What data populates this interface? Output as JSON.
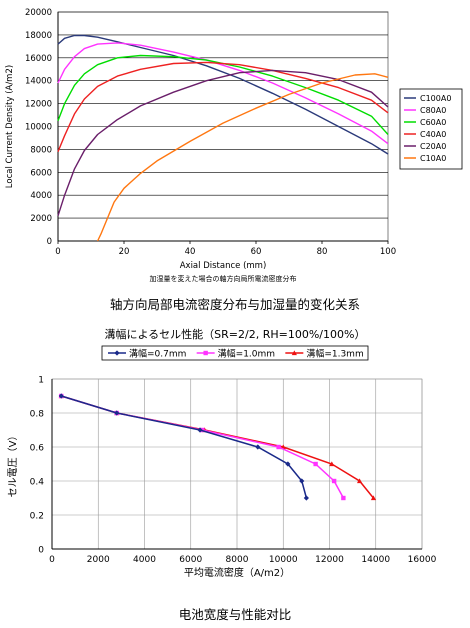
{
  "chart_data": [
    {
      "type": "line",
      "title": "",
      "xlabel": "Axial Distance (mm)",
      "ylabel": "Local Current Density (A/m2)",
      "subtitle_jp": "加湿量を変えた場合の軸方向局所電流密度分布",
      "xlim": [
        0,
        100
      ],
      "ylim": [
        0,
        20000
      ],
      "xticks": [
        0,
        20,
        40,
        60,
        80,
        100
      ],
      "yticks": [
        0,
        2000,
        4000,
        6000,
        8000,
        10000,
        12000,
        14000,
        16000,
        18000,
        20000
      ],
      "grid": true,
      "legend_position": "right",
      "series": [
        {
          "name": "C100A0",
          "color": "#2b3a7a",
          "x": [
            0,
            2,
            5,
            8,
            12,
            18,
            25,
            35,
            45,
            55,
            65,
            75,
            85,
            95,
            100
          ],
          "y": [
            17200,
            17700,
            17950,
            17950,
            17800,
            17400,
            16900,
            16200,
            15300,
            14200,
            12900,
            11500,
            10000,
            8500,
            7600
          ]
        },
        {
          "name": "C80A0",
          "color": "#ff33ff",
          "x": [
            0,
            2,
            5,
            8,
            12,
            18,
            25,
            35,
            45,
            55,
            65,
            75,
            85,
            95,
            100
          ],
          "y": [
            13800,
            15000,
            16100,
            16800,
            17200,
            17300,
            17100,
            16500,
            15800,
            14900,
            13800,
            12500,
            11100,
            9600,
            8500
          ]
        },
        {
          "name": "C60A0",
          "color": "#00dd00",
          "x": [
            0,
            2,
            5,
            8,
            12,
            18,
            25,
            35,
            45,
            55,
            65,
            75,
            85,
            95,
            100
          ],
          "y": [
            10500,
            12000,
            13600,
            14600,
            15400,
            16000,
            16200,
            16100,
            15800,
            15200,
            14400,
            13400,
            12300,
            10900,
            9300
          ]
        },
        {
          "name": "C40A0",
          "color": "#ee2222",
          "x": [
            0,
            2,
            5,
            8,
            12,
            18,
            25,
            35,
            45,
            55,
            65,
            75,
            85,
            95,
            100
          ],
          "y": [
            7800,
            9200,
            11100,
            12400,
            13500,
            14400,
            15000,
            15500,
            15600,
            15400,
            14900,
            14200,
            13400,
            12300,
            11200
          ]
        },
        {
          "name": "C20A0",
          "color": "#6a1f6a",
          "x": [
            0,
            2,
            5,
            8,
            12,
            18,
            25,
            35,
            45,
            55,
            65,
            75,
            85,
            95,
            100
          ],
          "y": [
            2200,
            4000,
            6300,
            7900,
            9300,
            10600,
            11800,
            13000,
            14000,
            14700,
            14900,
            14700,
            14100,
            13000,
            11700
          ]
        },
        {
          "name": "C10A0",
          "color": "#ff7711",
          "x": [
            12,
            13,
            15,
            17,
            20,
            25,
            30,
            40,
            50,
            60,
            70,
            80,
            90,
            96,
            100
          ],
          "y": [
            0,
            600,
            2000,
            3400,
            4600,
            5900,
            7000,
            8700,
            10300,
            11600,
            12800,
            13800,
            14500,
            14600,
            14300
          ]
        }
      ]
    },
    {
      "type": "line",
      "title": "溝幅によるセル性能（SR=2/2, RH=100%/100%）",
      "xlabel": "平均電流密度（A/m2）",
      "ylabel": "セル電圧（V）",
      "xlim": [
        0,
        16000
      ],
      "ylim": [
        0,
        1
      ],
      "xticks": [
        0,
        2000,
        4000,
        6000,
        8000,
        10000,
        12000,
        14000,
        16000
      ],
      "yticks": [
        0,
        0.2,
        0.4,
        0.6,
        0.8,
        1
      ],
      "grid": true,
      "legend_position": "top",
      "series": [
        {
          "name": "溝幅=0.7mm",
          "color": "#1a2a8a",
          "marker": "diamond",
          "x": [
            400,
            2800,
            6400,
            8900,
            10200,
            10800,
            11000
          ],
          "y": [
            0.9,
            0.8,
            0.7,
            0.6,
            0.5,
            0.4,
            0.3
          ]
        },
        {
          "name": "溝幅=1.0mm",
          "color": "#ff33ff",
          "marker": "square",
          "x": [
            400,
            2800,
            6500,
            9800,
            11400,
            12200,
            12600
          ],
          "y": [
            0.9,
            0.8,
            0.7,
            0.6,
            0.5,
            0.4,
            0.3
          ]
        },
        {
          "name": "溝幅=1.3mm",
          "color": "#ee1111",
          "marker": "triangle",
          "x": [
            400,
            2800,
            6600,
            10000,
            12100,
            13300,
            13900
          ],
          "y": [
            0.9,
            0.8,
            0.7,
            0.6,
            0.5,
            0.4,
            0.3
          ]
        }
      ]
    }
  ],
  "captions": {
    "chart1": "轴方向局部电流密度分布与加湿量的变化关系",
    "chart2": "电池宽度与性能对比"
  }
}
